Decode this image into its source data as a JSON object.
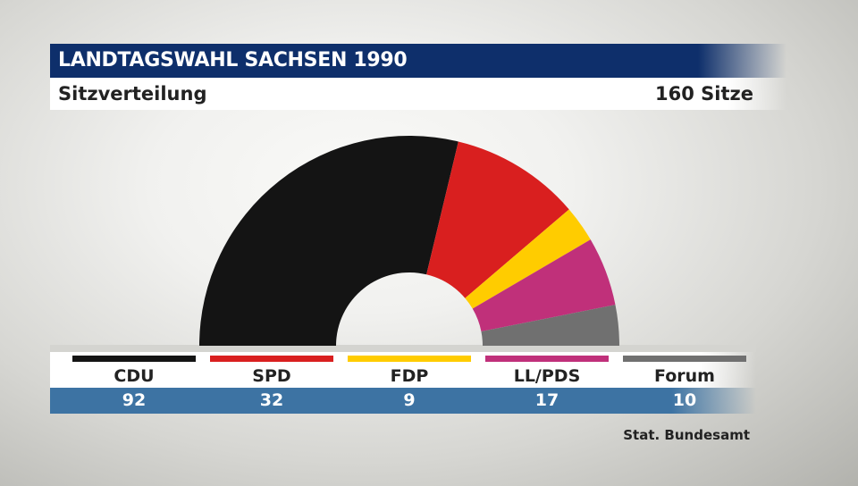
{
  "header": {
    "title": "LANDTAGSWAHL SACHSEN 1990",
    "subtitle": "Sitzverteilung",
    "total": "160 Sitze"
  },
  "chart_data": {
    "type": "pie",
    "variant": "parliament-semicircle",
    "title": "LANDTAGSWAHL SACHSEN 1990",
    "subtitle": "Sitzverteilung",
    "total_seats": 160,
    "categories": [
      "CDU",
      "SPD",
      "FDP",
      "LL/PDS",
      "Forum"
    ],
    "values": [
      92,
      32,
      9,
      17,
      10
    ],
    "colors": [
      "#141414",
      "#d91f1f",
      "#ffcc00",
      "#c0307a",
      "#707070"
    ]
  },
  "parties": [
    {
      "name": "CDU",
      "value": "92",
      "color": "#141414"
    },
    {
      "name": "SPD",
      "value": "32",
      "color": "#d91f1f"
    },
    {
      "name": "FDP",
      "value": "9",
      "color": "#ffcc00"
    },
    {
      "name": "LL/PDS",
      "value": "17",
      "color": "#c0307a"
    },
    {
      "name": "Forum",
      "value": "10",
      "color": "#707070"
    }
  ],
  "source": "Stat. Bundesamt"
}
